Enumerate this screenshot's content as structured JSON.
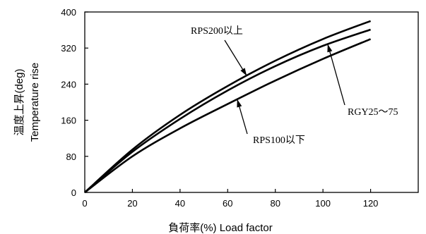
{
  "chart_data": {
    "type": "line",
    "xlabel": "負荷率(%) Load factor",
    "ylabel_jp": "温度上昇(deg)",
    "ylabel_en": "Temperature rise",
    "xlim": [
      0,
      140
    ],
    "ylim": [
      0,
      400
    ],
    "x_ticks": [
      0,
      20,
      40,
      60,
      80,
      100,
      120
    ],
    "y_ticks": [
      0,
      80,
      160,
      240,
      320,
      400
    ],
    "grid": false,
    "series": [
      {
        "name": "RPS200以上",
        "x": [
          0,
          20,
          40,
          60,
          80,
          100,
          120
        ],
        "y": [
          0,
          95,
          172,
          236,
          292,
          340,
          380
        ]
      },
      {
        "name": "RGY25～75",
        "x": [
          0,
          20,
          40,
          60,
          80,
          100,
          120
        ],
        "y": [
          0,
          90,
          163,
          226,
          280,
          325,
          361
        ]
      },
      {
        "name": "RPS100以下",
        "x": [
          0,
          20,
          40,
          60,
          80,
          100,
          120
        ],
        "y": [
          0,
          80,
          142,
          196,
          248,
          296,
          340
        ]
      }
    ]
  }
}
